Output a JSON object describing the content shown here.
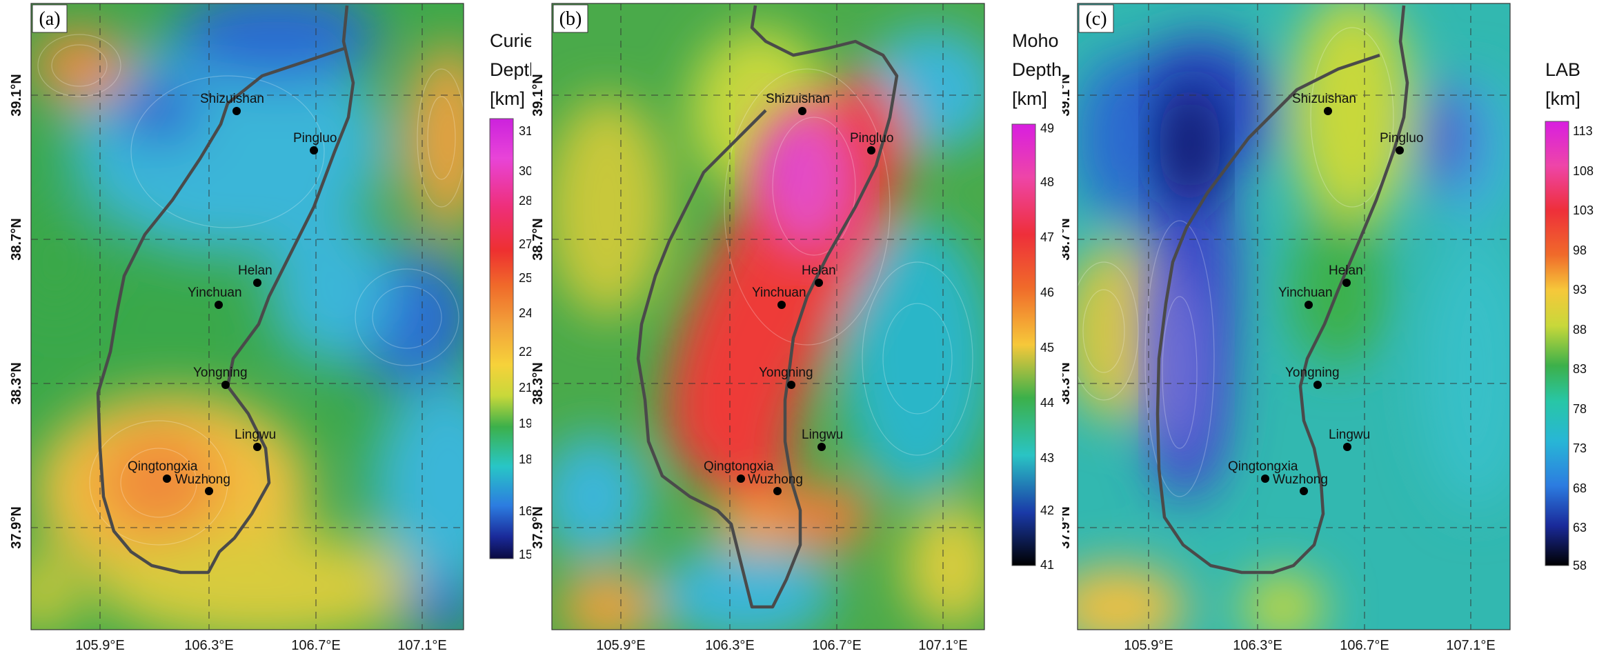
{
  "panels": [
    {
      "letter": "(a)",
      "legend_title": [
        "Curie",
        "Depth",
        "[km]"
      ],
      "colorbar_ticks": [
        "31.5",
        "30",
        "28.5",
        "27",
        "25.5",
        "24",
        "22.5",
        "21",
        "19.5",
        "18",
        "16.5",
        "15"
      ],
      "colorbar_stops": [
        "#cc22dd",
        "#e844d8",
        "#ee2f7a",
        "#ee3030",
        "#f06a2a",
        "#f2a23a",
        "#f6d23a",
        "#c8d83a",
        "#3cb04a",
        "#28c6c6",
        "#2c7ce0",
        "#1a2a9a",
        "#0a0a40"
      ]
    },
    {
      "letter": "(b)",
      "legend_title": [
        "Moho",
        "Depth",
        "[km]"
      ],
      "colorbar_ticks": [
        "49",
        "48",
        "47",
        "46",
        "45",
        "44",
        "43",
        "42",
        "41"
      ],
      "colorbar_stops": [
        "#d81ee0",
        "#ee45a8",
        "#ee2f3a",
        "#f06a2a",
        "#f6c83a",
        "#3cb04a",
        "#2ac4c4",
        "#1a3aa8",
        "#000000"
      ]
    },
    {
      "letter": "(c)",
      "legend_title": [
        "LAB",
        "[km]"
      ],
      "colorbar_ticks": [
        "113",
        "108",
        "103",
        "98",
        "93",
        "88",
        "83",
        "78",
        "73",
        "68",
        "63",
        "58"
      ],
      "colorbar_stops": [
        "#d81ee0",
        "#ee45a8",
        "#ee2f3a",
        "#f06a2a",
        "#f6c83a",
        "#c8d83a",
        "#3cb04a",
        "#28c6a6",
        "#28b6d6",
        "#2c7ce0",
        "#1a2a9a",
        "#000000"
      ]
    }
  ],
  "x_ticks": [
    "105.9°E",
    "106.3°E",
    "106.7°E",
    "107.1°E"
  ],
  "y_ticks": [
    "39.1°N",
    "38.7°N",
    "38.3°N",
    "37.9°N"
  ],
  "cities": [
    "Shizuishan",
    "Pingluo",
    "Helan",
    "Yinchuan",
    "Yongning",
    "Lingwu",
    "Qingtongxia",
    "Wuzhong"
  ]
}
